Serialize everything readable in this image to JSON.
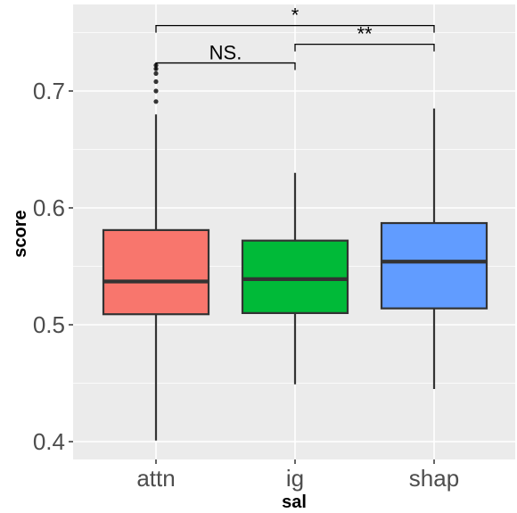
{
  "chart_data": {
    "type": "boxplot",
    "xlabel": "sal",
    "ylabel": "score",
    "ylim": [
      0.385,
      0.755
    ],
    "y_ticks": [
      0.4,
      0.5,
      0.6,
      0.7
    ],
    "y_tick_labels": [
      "0.4",
      "0.5",
      "0.6",
      "0.7"
    ],
    "categories": [
      "attn",
      "ig",
      "shap"
    ],
    "colors": {
      "attn": "#F8766D",
      "ig": "#00BA38",
      "shap": "#619CFF",
      "panel": "#EBEBEB",
      "grid": "#FFFFFF"
    },
    "boxes": [
      {
        "name": "attn",
        "whisker_low": 0.401,
        "q1": 0.509,
        "median": 0.537,
        "q3": 0.581,
        "whisker_high": 0.68,
        "outliers": [
          0.691,
          0.7,
          0.708,
          0.715,
          0.719,
          0.722
        ]
      },
      {
        "name": "ig",
        "whisker_low": 0.449,
        "q1": 0.51,
        "median": 0.539,
        "q3": 0.572,
        "whisker_high": 0.63,
        "outliers": []
      },
      {
        "name": "shap",
        "whisker_low": 0.445,
        "q1": 0.514,
        "median": 0.554,
        "q3": 0.587,
        "whisker_high": 0.685,
        "outliers": []
      }
    ],
    "comparisons": [
      {
        "from": "attn",
        "to": "ig",
        "label": "NS.",
        "y": 0.724
      },
      {
        "from": "ig",
        "to": "shap",
        "label": "**",
        "y": 0.74
      },
      {
        "from": "attn",
        "to": "shap",
        "label": "*",
        "y": 0.756
      }
    ]
  }
}
